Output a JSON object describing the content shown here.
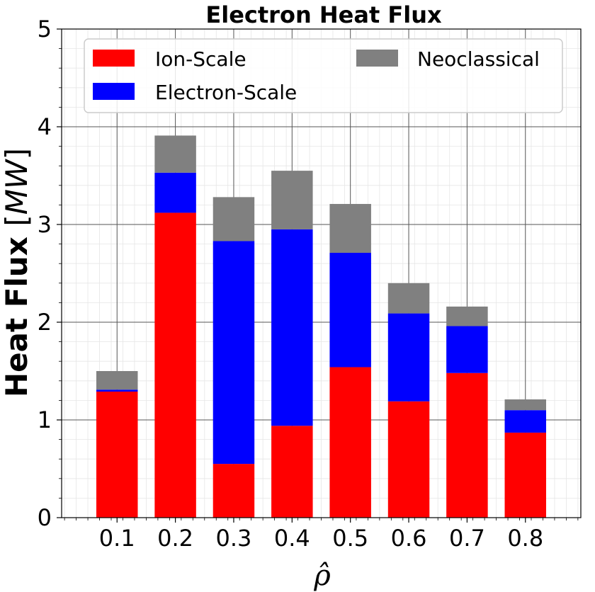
{
  "chart_data": {
    "type": "bar",
    "stacked": true,
    "title": "Electron Heat Flux",
    "xlabel": "ρ̂",
    "ylabel": {
      "main": "Heat Flux",
      "open": "[",
      "unit": "MW",
      "close": "]"
    },
    "categories": [
      "0.1",
      "0.2",
      "0.3",
      "0.4",
      "0.5",
      "0.6",
      "0.7",
      "0.8"
    ],
    "series": [
      {
        "name": "Ion-Scale",
        "color": "#ff0000",
        "values": [
          1.29,
          3.12,
          0.55,
          0.94,
          1.54,
          1.19,
          1.48,
          0.87
        ]
      },
      {
        "name": "Electron-Scale",
        "color": "#0000ff",
        "values": [
          0.02,
          0.41,
          2.28,
          2.01,
          1.17,
          0.9,
          0.48,
          0.23
        ]
      },
      {
        "name": "Neoclassical",
        "color": "#808080",
        "values": [
          0.19,
          0.38,
          0.45,
          0.6,
          0.5,
          0.31,
          0.2,
          0.11
        ]
      }
    ],
    "ylim": [
      0,
      5
    ],
    "yticks": [
      "0",
      "1",
      "2",
      "3",
      "4",
      "5"
    ],
    "grid": true,
    "minor_grid": true,
    "legend_position": "top"
  }
}
